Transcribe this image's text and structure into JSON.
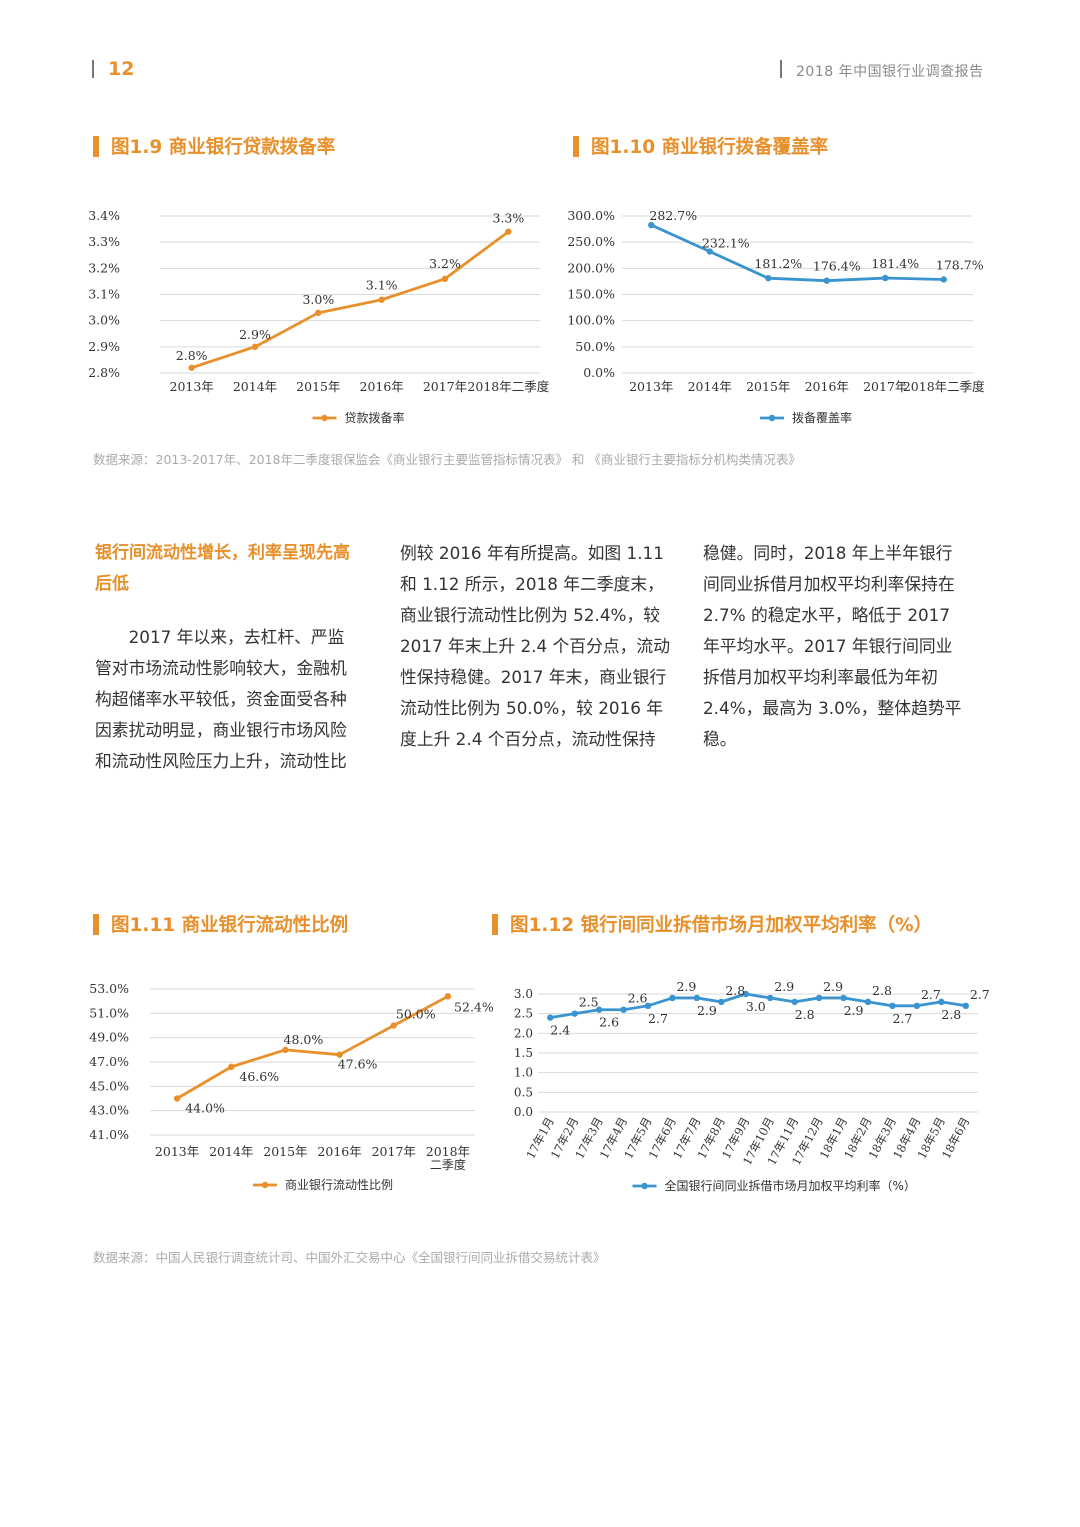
{
  "header": {
    "page_number": "12",
    "doc_title": "2018 年中国银行业调查报告"
  },
  "figures": {
    "f9": {
      "title": "图1.9 商业银行贷款拨备率"
    },
    "f10": {
      "title": "图1.10 商业银行拨备覆盖率"
    },
    "f11": {
      "title": "图1.11 商业银行流动性比例"
    },
    "f12": {
      "title": "图1.12 银行间同业拆借市场月加权平均利率（%）"
    }
  },
  "source_top": "数据来源：2013-2017年、2018年二季度银保监会《商业银行主要监管指标情况表》 和 《商业银行主要指标分机构类情况表》",
  "source_bottom": "数据来源：中国人民银行调查统计司、中国外汇交易中心《全国银行间同业拆借交易统计表》",
  "body": {
    "heading_line1": "银行间流动性增长，利率呈现先高",
    "heading_line2": "后低",
    "col1": [
      "2017 年以来，去杠杆、严监",
      "管对市场流动性影响较大，金融机",
      "构超储率水平较低，资金面受各种",
      "因素扰动明显，商业银行市场风险",
      "和流动性风险压力上升，流动性比"
    ],
    "col2": [
      "例较 2016 年有所提高。如图 1.11",
      "和 1.12 所示，2018 年二季度末，",
      "商业银行流动性比例为 52.4%，较",
      "2017 年末上升 2.4 个百分点，流动",
      "性保持稳健。2017 年末，商业银行",
      "流动性比例为 50.0%，较 2016 年",
      "度上升 2.4 个百分点，流动性保持"
    ],
    "col3": [
      "稳健。同时，2018 年上半年银行",
      "间同业拆借月加权平均利率保持在",
      "2.7% 的稳定水平，略低于 2017",
      "年平均水平。2017 年银行间同业",
      "拆借月加权平均利率最低为年初",
      "2.4%，最高为 3.0%，整体趋势平稳。"
    ]
  },
  "chart_data": [
    {
      "id": "f9",
      "type": "line",
      "title": "图1.9 商业银行贷款拨备率",
      "categories": [
        "2013年",
        "2014年",
        "2015年",
        "2016年",
        "2017年",
        "2018年二季度"
      ],
      "series": [
        {
          "name": "贷款拨备率",
          "values": [
            2.82,
            2.9,
            3.03,
            3.08,
            3.16,
            3.34
          ],
          "labels": [
            "2.8%",
            "2.9%",
            "3.0%",
            "3.1%",
            "3.2%",
            "3.3%"
          ],
          "color": "#e8902b"
        }
      ],
      "ylim": [
        2.8,
        3.4
      ],
      "yticks": [
        3.4,
        3.3,
        3.2,
        3.1,
        3.0,
        2.9,
        2.8
      ],
      "ytick_labels": [
        "3.4%",
        "3.3%",
        "3.2%",
        "3.1%",
        "3.0%",
        "2.9%",
        "2.8%"
      ],
      "legend": "bottom-center",
      "grid": true
    },
    {
      "id": "f10",
      "type": "line",
      "title": "图1.10 商业银行拨备覆盖率",
      "categories": [
        "2013年",
        "2014年",
        "2015年",
        "2016年",
        "2017年",
        "2018年二季度"
      ],
      "series": [
        {
          "name": "拨备覆盖率",
          "values": [
            282.7,
            232.1,
            181.2,
            176.4,
            181.4,
            178.7
          ],
          "labels": [
            "282.7%",
            "232.1%",
            "181.2%",
            "176.4%",
            "181.4%",
            "178.7%"
          ],
          "color": "#3a94cf"
        }
      ],
      "ylim": [
        0,
        300
      ],
      "yticks": [
        300,
        250,
        200,
        150,
        100,
        50,
        0
      ],
      "ytick_labels": [
        "300.0%",
        "250.0%",
        "200.0%",
        "150.0%",
        "100.0%",
        "50.0%",
        "0.0%"
      ],
      "legend": "bottom-center",
      "grid": true
    },
    {
      "id": "f11",
      "type": "line",
      "title": "图1.11 商业银行流动性比例",
      "categories": [
        "2013年",
        "2014年",
        "2015年",
        "2016年",
        "2017年",
        "2018年"
      ],
      "category_sublabels": [
        "",
        "",
        "",
        "",
        "",
        "二季度"
      ],
      "series": [
        {
          "name": "商业银行流动性比例",
          "values": [
            44.0,
            46.6,
            48.0,
            47.6,
            50.0,
            52.4
          ],
          "labels": [
            "44.0%",
            "46.6%",
            "48.0%",
            "47.6%",
            "50.0%",
            "52.4%"
          ],
          "color": "#e8902b"
        }
      ],
      "ylim": [
        41,
        53
      ],
      "yticks": [
        53,
        51,
        49,
        47,
        45,
        43,
        41
      ],
      "ytick_labels": [
        "53.0%",
        "51.0%",
        "49.0%",
        "47.0%",
        "45.0%",
        "43.0%",
        "41.0%"
      ],
      "legend": "bottom-center",
      "grid": true
    },
    {
      "id": "f12",
      "type": "line",
      "title": "图1.12 银行间同业拆借市场月加权平均利率（%）",
      "categories": [
        "17年1月",
        "17年2月",
        "17年3月",
        "17年4月",
        "17年5月",
        "17年6月",
        "17年7月",
        "17年8月",
        "17年9月",
        "17年10月",
        "17年11月",
        "17年12月",
        "18年1月",
        "18年2月",
        "18年3月",
        "18年4月",
        "18年5月",
        "18年6月"
      ],
      "series": [
        {
          "name": "全国银行间同业拆借市场月加权平均利率（%）",
          "values": [
            2.4,
            2.5,
            2.6,
            2.6,
            2.7,
            2.9,
            2.9,
            2.8,
            3.0,
            2.9,
            2.8,
            2.9,
            2.9,
            2.8,
            2.7,
            2.7,
            2.8,
            2.7
          ],
          "labels": [
            "2.4",
            "2.5",
            "2.6",
            "2.6",
            "2.7",
            "2.9",
            "2.9",
            "2.8",
            "3.0",
            "2.9",
            "2.8",
            "2.9",
            "2.9",
            "2.8",
            "2.7",
            "2.7",
            "2.8",
            "2.7"
          ],
          "color": "#3a94cf"
        }
      ],
      "ylim": [
        0,
        3.0
      ],
      "yticks": [
        3.0,
        2.5,
        2.0,
        1.5,
        1.0,
        0.5,
        0.0
      ],
      "ytick_labels": [
        "3.0",
        "2.5",
        "2.0",
        "1.5",
        "1.0",
        "0.5",
        "0.0"
      ],
      "legend": "bottom-center",
      "grid": true
    }
  ]
}
